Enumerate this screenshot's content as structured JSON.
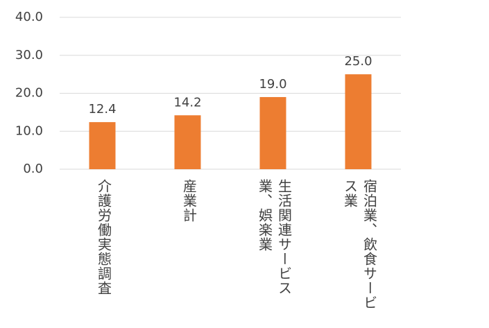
{
  "chart_data": {
    "type": "bar",
    "categories": [
      "介護労働実態調査",
      "産業計",
      "生活関連サービス業、娯楽業",
      "宿泊業、飲食サービス業"
    ],
    "values": [
      12.4,
      14.2,
      19,
      25
    ],
    "value_labels": [
      "12.4",
      "14.2",
      "19.0",
      "25.0"
    ],
    "color": "#ed7d31",
    "ylim": [
      0,
      40
    ],
    "yticks": [
      {
        "value": 0,
        "label": "0.0"
      },
      {
        "value": 10,
        "label": "10.0"
      },
      {
        "value": 20,
        "label": "20.0"
      },
      {
        "value": 30,
        "label": "30.0"
      },
      {
        "value": 40,
        "label": "40.0"
      }
    ],
    "grid": true
  }
}
